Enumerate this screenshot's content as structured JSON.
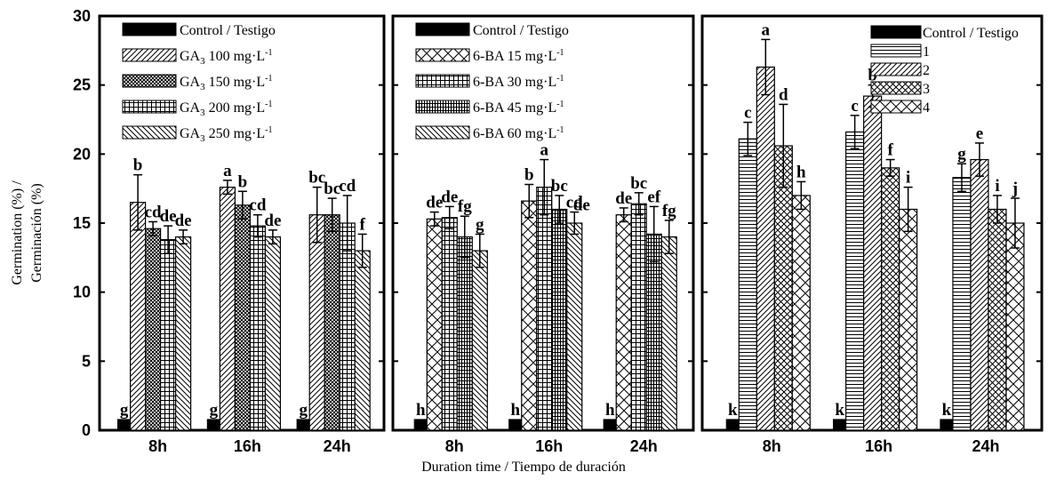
{
  "figure": {
    "ylabel_line1": "Germination (%) /",
    "ylabel_line2": "Germinación  (%)",
    "xlabel": "Duration time / Tiempo de duración"
  },
  "chart_data": [
    {
      "type": "bar",
      "categories": [
        "8h",
        "16h",
        "24h"
      ],
      "ylim": [
        0,
        30
      ],
      "yticks": [
        "0",
        "5",
        "10",
        "15",
        "20",
        "25",
        "30"
      ],
      "series": [
        {
          "name": "Control / Testigo",
          "pattern": "solid",
          "values": [
            0,
            0,
            0
          ],
          "errors": [
            0,
            0,
            0
          ],
          "letters": [
            "g",
            "g",
            "g"
          ]
        },
        {
          "name": "GA3 100 mg·L-1",
          "legend_base": "GA",
          "legend_sub": "3",
          "legend_rest": " 100 mg·L",
          "legend_sup": "-1",
          "pattern": "diag-right",
          "values": [
            16.5,
            17.6,
            15.6
          ],
          "errors": [
            2.0,
            0.5,
            2.0
          ],
          "letters": [
            "b",
            "a",
            "bc"
          ]
        },
        {
          "name": "GA3 150 mg·L-1",
          "legend_base": "GA",
          "legend_sub": "3",
          "legend_rest": " 150 mg·L",
          "legend_sup": "-1",
          "pattern": "crosshatch-dense",
          "values": [
            14.6,
            16.3,
            15.6
          ],
          "errors": [
            0.5,
            1.0,
            1.2
          ],
          "letters": [
            "cd",
            "b",
            "bc"
          ]
        },
        {
          "name": "GA3 200 mg·L-1",
          "legend_base": "GA",
          "legend_sub": "3",
          "legend_rest": " 200 mg·L",
          "legend_sup": "-1",
          "pattern": "grid",
          "values": [
            13.8,
            14.8,
            15.0
          ],
          "errors": [
            1.0,
            0.8,
            2.0
          ],
          "letters": [
            "de",
            "cd",
            "cd"
          ]
        },
        {
          "name": "GA3 250 mg·L-1",
          "legend_base": "GA",
          "legend_sub": "3",
          "legend_rest": " 250 mg·L",
          "legend_sup": "-1",
          "pattern": "diag-left",
          "values": [
            14.0,
            14.0,
            13.0
          ],
          "errors": [
            0.5,
            0.5,
            1.2
          ],
          "letters": [
            "de",
            "de",
            "f"
          ]
        }
      ]
    },
    {
      "type": "bar",
      "categories": [
        "8h",
        "16h",
        "24h"
      ],
      "ylim": [
        0,
        30
      ],
      "series": [
        {
          "name": "Control / Testigo",
          "pattern": "solid",
          "values": [
            0,
            0,
            0
          ],
          "errors": [
            0,
            0,
            0
          ],
          "letters": [
            "h",
            "h",
            "h"
          ]
        },
        {
          "name": "6-BA 15 mg·L-1",
          "legend_base": "6-BA 15 mg·L",
          "legend_sup": "-1",
          "pattern": "big-x",
          "values": [
            15.3,
            16.6,
            15.6
          ],
          "errors": [
            0.5,
            1.2,
            0.5
          ],
          "letters": [
            "de",
            "b",
            "de"
          ]
        },
        {
          "name": "6-BA 30 mg·L-1",
          "legend_base": "6-BA 30 mg·L",
          "legend_sup": "-1",
          "pattern": "grid",
          "values": [
            15.4,
            17.6,
            16.4
          ],
          "errors": [
            0.8,
            2.0,
            0.8
          ],
          "letters": [
            "de",
            "a",
            "bc"
          ]
        },
        {
          "name": "6-BA 45 mg·L-1",
          "legend_base": "6-BA 45 mg·L",
          "legend_sup": "-1",
          "pattern": "grid-dense",
          "values": [
            14.0,
            16.0,
            14.2
          ],
          "errors": [
            1.5,
            1.0,
            2.0
          ],
          "letters": [
            "fg",
            "bc",
            "ef"
          ]
        },
        {
          "name": "6-BA 60 mg·L-1",
          "legend_base": "6-BA 60 mg·L",
          "legend_sup": "-1",
          "pattern": "diag-left",
          "values": [
            13.0,
            15.0,
            14.0
          ],
          "errors": [
            1.2,
            0.8,
            1.2
          ],
          "letters": [
            "g",
            "cd",
            "fg"
          ]
        }
      ],
      "extra_letters": [
        {
          "category": "16h",
          "series_index": 4,
          "text": "de"
        }
      ]
    },
    {
      "type": "bar",
      "categories": [
        "8h",
        "16h",
        "24h"
      ],
      "ylim": [
        0,
        30
      ],
      "series": [
        {
          "name": "Control / Testigo",
          "pattern": "solid",
          "values": [
            0,
            0,
            0
          ],
          "errors": [
            0,
            0,
            0
          ],
          "letters": [
            "k",
            "k",
            "k"
          ]
        },
        {
          "name": "1",
          "legend_base": "1",
          "pattern": "hlines",
          "values": [
            21.1,
            21.6,
            18.3
          ],
          "errors": [
            1.2,
            1.2,
            1.0
          ],
          "letters": [
            "c",
            "c",
            "g"
          ]
        },
        {
          "name": "2",
          "legend_base": "2",
          "pattern": "diag-right",
          "values": [
            26.3,
            24.2,
            19.6
          ],
          "errors": [
            2.0,
            0.8,
            1.2
          ],
          "letters": [
            "a",
            "b",
            "e"
          ]
        },
        {
          "name": "3",
          "legend_base": "3",
          "pattern": "crosshatch",
          "values": [
            20.6,
            19.0,
            16.0
          ],
          "errors": [
            3.0,
            0.6,
            1.0
          ],
          "letters": [
            "d",
            "f",
            "i"
          ]
        },
        {
          "name": "4",
          "legend_base": "4",
          "pattern": "big-x",
          "values": [
            17.0,
            16.0,
            15.0
          ],
          "errors": [
            1.0,
            1.6,
            1.8
          ],
          "letters": [
            "h",
            "i",
            "j"
          ]
        }
      ]
    }
  ]
}
